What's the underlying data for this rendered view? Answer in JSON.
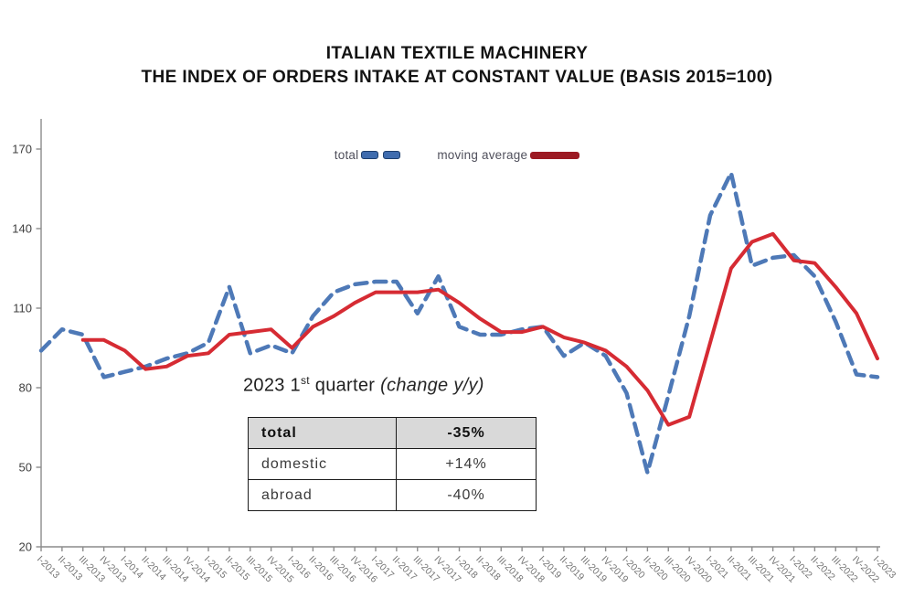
{
  "title": {
    "line1": "ITALIAN TEXTILE MACHINERY",
    "line2": "THE INDEX OF ORDERS INTAKE AT CONSTANT VALUE (BASIS 2015=100)"
  },
  "legend": {
    "total_label": "total",
    "moving_average_label": "moving average"
  },
  "annotation": {
    "year_part": "2023 1",
    "superscript": "st",
    "quarter_part": " quarter ",
    "change_part": "(change y/y)"
  },
  "summary_table": {
    "rows": [
      {
        "label": "total",
        "value": "-35%"
      },
      {
        "label": "domestic",
        "value": "+14%"
      },
      {
        "label": "abroad",
        "value": "-40%"
      }
    ]
  },
  "colors": {
    "total_line": "#4e79b7",
    "moving_average_line": "#d62b33",
    "legend_total_swatch": "#3f6cae",
    "legend_moving_average_swatch": "#9c1a23",
    "axis": "#8c8c8c",
    "y_label": "#3f3f3f",
    "x_label": "#747474",
    "table_header_bg": "#d9d9d9"
  },
  "chart_data": {
    "type": "line",
    "categories": [
      "I-2013",
      "II-2013",
      "III-2013",
      "IV-2013",
      "I-2014",
      "II-2014",
      "III-2014",
      "IV-2014",
      "I-2015",
      "II-2015",
      "III-2015",
      "IV-2015",
      "I-2016",
      "II-2016",
      "III-2016",
      "IV-2016",
      "I-2017",
      "II-2017",
      "III-2017",
      "IV-2017",
      "I-2018",
      "II-2018",
      "III-2018",
      "IV-2018",
      "I-2019",
      "II-2019",
      "III-2019",
      "IV-2019",
      "I-2020",
      "II-2020",
      "III-2020",
      "IV-2020",
      "I-2021",
      "II-2021",
      "III-2021",
      "IV-2021",
      "I-2022",
      "II-2022",
      "III-2022",
      "IV-2022",
      "I-2023"
    ],
    "series": [
      {
        "name": "total",
        "style": "dashed",
        "color": "#4e79b7",
        "values": [
          94,
          102,
          100,
          84,
          86,
          88,
          91,
          93,
          97,
          118,
          93,
          96,
          93,
          107,
          116,
          119,
          120,
          120,
          108,
          122,
          103,
          100,
          100,
          102,
          103,
          92,
          97,
          92,
          78,
          48,
          77,
          107,
          145,
          161,
          126,
          129,
          130,
          122,
          105,
          85,
          84
        ]
      },
      {
        "name": "moving average",
        "style": "solid",
        "color": "#d62b33",
        "values": [
          null,
          null,
          98,
          98,
          94,
          87,
          88,
          92,
          93,
          100,
          101,
          102,
          95,
          103,
          107,
          112,
          116,
          116,
          116,
          117,
          112,
          106,
          101,
          101,
          103,
          99,
          97,
          94,
          88,
          79,
          66,
          69,
          97,
          125,
          135,
          138,
          128,
          127,
          118,
          108,
          91
        ]
      }
    ],
    "title": "ITALIAN TEXTILE MACHINERY - THE INDEX OF ORDERS INTAKE AT CONSTANT VALUE (BASIS 2015=100)",
    "xlabel": "",
    "ylabel": "",
    "ylim": [
      20,
      170
    ],
    "yticks": [
      20,
      50,
      80,
      110,
      140,
      170
    ],
    "grid": false,
    "legend_position": "top-center"
  }
}
